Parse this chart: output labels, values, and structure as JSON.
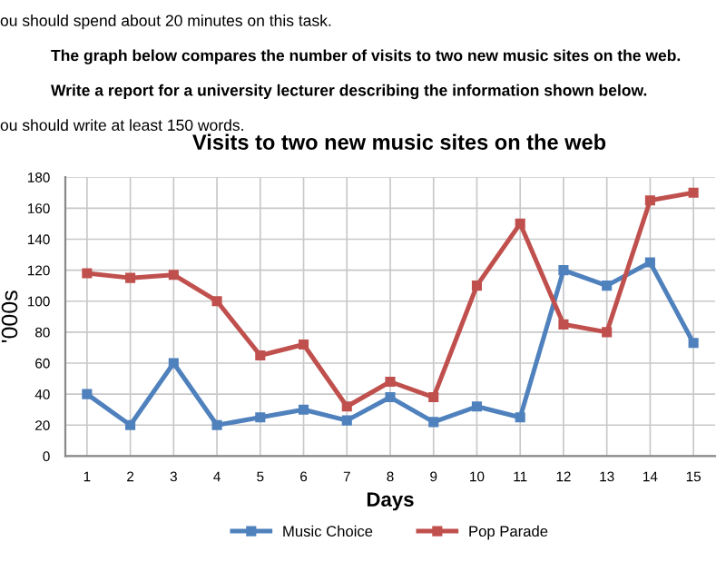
{
  "chart_data": {
    "type": "line",
    "title": "Visits to two new music sites on the web",
    "xlabel": "Days",
    "ylabel": "'000s",
    "annotations": [
      "ou should spend about 20 minutes on this task.",
      "The graph below compares the number of visits to two new music sites on the web.",
      "Write a report for a university lecturer describing the information shown below.",
      "ou should write at least 150 words."
    ],
    "categories": [
      "1",
      "2",
      "3",
      "4",
      "5",
      "6",
      "7",
      "8",
      "9",
      "10",
      "11",
      "12",
      "13",
      "14",
      "15"
    ],
    "series": [
      {
        "name": "Music Choice",
        "color": "#4f81bd",
        "values": [
          40,
          20,
          60,
          20,
          25,
          30,
          23,
          38,
          22,
          32,
          25,
          120,
          110,
          125,
          73
        ]
      },
      {
        "name": "Pop Parade",
        "color": "#c0504d",
        "values": [
          118,
          115,
          117,
          100,
          65,
          72,
          32,
          48,
          38,
          110,
          150,
          85,
          80,
          165,
          170
        ]
      }
    ],
    "ylim": [
      0,
      180
    ],
    "yticks": [
      0,
      20,
      40,
      60,
      80,
      100,
      120,
      140,
      160,
      180
    ],
    "grid": true,
    "legend": "bottom",
    "marker": "square",
    "line_style": "solid"
  }
}
